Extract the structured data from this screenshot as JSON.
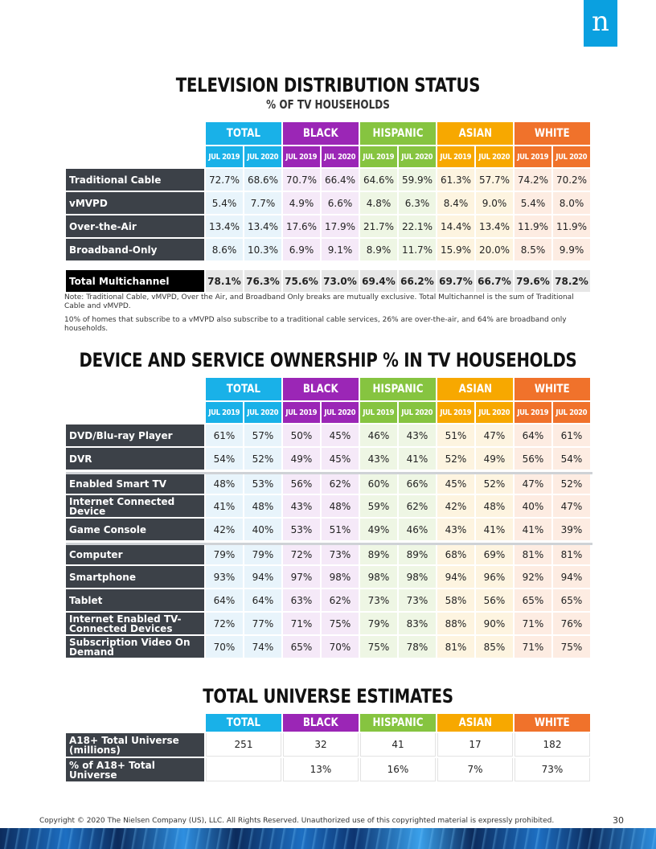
{
  "logo": {
    "letter": "n"
  },
  "section1": {
    "title": "TELEVISION DISTRIBUTION STATUS",
    "subtitle": "% OF TV HOUSEHOLDS",
    "groups": [
      "TOTAL",
      "BLACK",
      "HISPANIC",
      "ASIAN",
      "WHITE"
    ],
    "years": [
      "JUL 2019",
      "JUL 2020",
      "JUL 2019",
      "JUL 2020",
      "JUL 2019",
      "JUL 2020",
      "JUL 2019",
      "JUL 2020",
      "JUL 2019",
      "JUL 2020"
    ],
    "rows": [
      {
        "label": "Traditional Cable",
        "values": [
          "72.7%",
          "68.6%",
          "70.7%",
          "66.4%",
          "64.6%",
          "59.9%",
          "61.3%",
          "57.7%",
          "74.2%",
          "70.2%"
        ]
      },
      {
        "label": "vMVPD",
        "values": [
          "5.4%",
          "7.7%",
          "4.9%",
          "6.6%",
          "4.8%",
          "6.3%",
          "8.4%",
          "9.0%",
          "5.4%",
          "8.0%"
        ]
      },
      {
        "label": "Over-the-Air",
        "values": [
          "13.4%",
          "13.4%",
          "17.6%",
          "17.9%",
          "21.7%",
          "22.1%",
          "14.4%",
          "13.4%",
          "11.9%",
          "11.9%"
        ]
      },
      {
        "label": "Broadband-Only",
        "values": [
          "8.6%",
          "10.3%",
          "6.9%",
          "9.1%",
          "8.9%",
          "11.7%",
          "15.9%",
          "20.0%",
          "8.5%",
          "9.9%"
        ]
      }
    ],
    "total_row": {
      "label": "Total Multichannel",
      "values": [
        "78.1%",
        "76.3%",
        "75.6%",
        "73.0%",
        "69.4%",
        "66.2%",
        "69.7%",
        "66.7%",
        "79.6%",
        "78.2%"
      ]
    },
    "note1": "Note: Traditional Cable, vMVPD, Over the Air, and Broadband Only breaks are mutually exclusive. Total Multichannel is the sum of Traditional Cable and vMVPD.",
    "note2": "10% of homes that subscribe to a vMVPD also subscribe to a traditional cable services, 26% are over-the-air, and 64% are broadband only households."
  },
  "section2": {
    "title": "DEVICE AND SERVICE OWNERSHIP % IN TV HOUSEHOLDS",
    "groups": [
      "TOTAL",
      "BLACK",
      "HISPANIC",
      "ASIAN",
      "WHITE"
    ],
    "years": [
      "JUL 2019",
      "JUL 2020",
      "JUL 2019",
      "JUL 2020",
      "JUL 2019",
      "JUL 2020",
      "JUL 2019",
      "JUL 2020",
      "JUL 2019",
      "JUL 2020"
    ],
    "rows": [
      {
        "label": "DVD/Blu-ray Player",
        "values": [
          "61%",
          "57%",
          "50%",
          "45%",
          "46%",
          "43%",
          "51%",
          "47%",
          "64%",
          "61%"
        ]
      },
      {
        "label": "DVR",
        "values": [
          "54%",
          "52%",
          "49%",
          "45%",
          "43%",
          "41%",
          "52%",
          "49%",
          "56%",
          "54%"
        ]
      },
      {
        "label": "Enabled Smart TV",
        "values": [
          "48%",
          "53%",
          "56%",
          "62%",
          "60%",
          "66%",
          "45%",
          "52%",
          "47%",
          "52%"
        ]
      },
      {
        "label": "Internet Connected Device",
        "values": [
          "41%",
          "48%",
          "43%",
          "48%",
          "59%",
          "62%",
          "42%",
          "48%",
          "40%",
          "47%"
        ]
      },
      {
        "label": "Game Console",
        "values": [
          "42%",
          "40%",
          "53%",
          "51%",
          "49%",
          "46%",
          "43%",
          "41%",
          "41%",
          "39%"
        ]
      },
      {
        "label": "Computer",
        "values": [
          "79%",
          "79%",
          "72%",
          "73%",
          "89%",
          "89%",
          "68%",
          "69%",
          "81%",
          "81%"
        ]
      },
      {
        "label": "Smartphone",
        "values": [
          "93%",
          "94%",
          "97%",
          "98%",
          "98%",
          "98%",
          "94%",
          "96%",
          "92%",
          "94%"
        ]
      },
      {
        "label": "Tablet",
        "values": [
          "64%",
          "64%",
          "63%",
          "62%",
          "73%",
          "73%",
          "58%",
          "56%",
          "65%",
          "65%"
        ]
      },
      {
        "label": "Internet Enabled TV-Connected Devices",
        "values": [
          "72%",
          "77%",
          "71%",
          "75%",
          "79%",
          "83%",
          "88%",
          "90%",
          "71%",
          "76%"
        ]
      },
      {
        "label": "Subscription Video On Demand",
        "values": [
          "70%",
          "74%",
          "65%",
          "70%",
          "75%",
          "78%",
          "81%",
          "85%",
          "71%",
          "75%"
        ]
      }
    ]
  },
  "section3": {
    "title": "TOTAL UNIVERSE ESTIMATES",
    "groups": [
      "TOTAL",
      "BLACK",
      "HISPANIC",
      "ASIAN",
      "WHITE"
    ],
    "rows": [
      {
        "label": "A18+ Total Universe (millions)",
        "values": [
          "251",
          "32",
          "41",
          "17",
          "182"
        ]
      },
      {
        "label": "% of A18+ Total Universe",
        "values": [
          "",
          "13%",
          "16%",
          "7%",
          "73%"
        ]
      }
    ]
  },
  "footer": {
    "copyright": "Copyright © 2020 The Nielsen Company (US), LLC. All Rights Reserved. Unauthorized use of this copyrighted material is expressly prohibited.",
    "page_number": "30"
  },
  "colors": {
    "total": "#19b1e8",
    "black": "#9b26b6",
    "hispanic": "#86c440",
    "asian": "#f7a800",
    "white": "#f0722b",
    "label_bg": "#3c4148"
  }
}
